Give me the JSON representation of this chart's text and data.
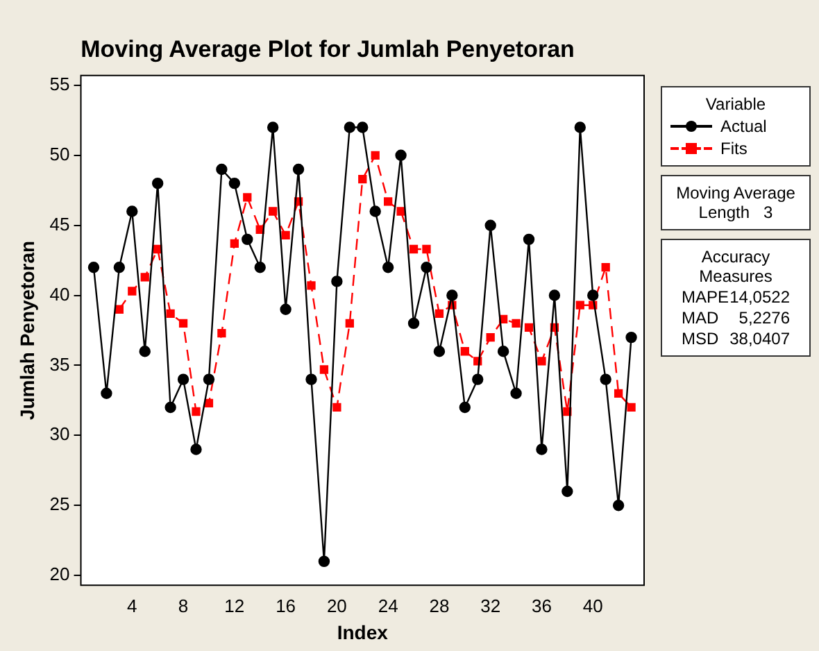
{
  "chart_data": {
    "type": "line",
    "title": "Moving Average Plot for Jumlah Penyetoran",
    "xlabel": "Index",
    "ylabel": "Jumlah Penyetoran",
    "legend_title": "Variable",
    "x": [
      1,
      2,
      3,
      4,
      5,
      6,
      7,
      8,
      9,
      10,
      11,
      12,
      13,
      14,
      15,
      16,
      17,
      18,
      19,
      20,
      21,
      22,
      23,
      24,
      25,
      26,
      27,
      28,
      29,
      30,
      31,
      32,
      33,
      34,
      35,
      36,
      37,
      38,
      39,
      40,
      41,
      42,
      43
    ],
    "series": [
      {
        "name": "Actual",
        "color": "#000000",
        "marker": "circle",
        "line_style": "solid",
        "values": [
          42,
          33,
          42,
          46,
          36,
          48,
          32,
          34,
          29,
          34,
          49,
          48,
          44,
          42,
          52,
          39,
          49,
          34,
          21,
          41,
          52,
          52,
          46,
          42,
          50,
          38,
          42,
          36,
          40,
          32,
          34,
          45,
          36,
          33,
          44,
          29,
          40,
          26,
          52,
          40,
          34,
          25,
          37
        ]
      },
      {
        "name": "Fits",
        "color": "#ff0000",
        "marker": "square",
        "line_style": "dashed",
        "values": [
          null,
          null,
          39,
          40.3,
          41.3,
          43.3,
          38.7,
          38,
          31.7,
          32.3,
          37.3,
          43.7,
          47,
          44.7,
          46,
          44.3,
          46.7,
          40.7,
          34.7,
          32,
          38,
          48.3,
          50,
          46.7,
          46,
          43.3,
          43.3,
          38.7,
          39.3,
          36,
          35.3,
          37,
          38.3,
          38,
          37.7,
          35.3,
          37.7,
          31.7,
          39.3,
          39.3,
          42,
          33,
          32
        ]
      }
    ],
    "xlim": [
      0,
      44
    ],
    "xticks": [
      4,
      8,
      12,
      16,
      20,
      24,
      28,
      32,
      36,
      40
    ],
    "ylim": [
      19.3,
      55.7
    ],
    "yticks": [
      20,
      25,
      30,
      35,
      40,
      45,
      50,
      55
    ],
    "grid": false,
    "legend": "right",
    "annotations": [
      "Moving Average",
      "Length   3",
      "Accuracy Measures",
      "MAPE",
      "14,0522",
      "MAD",
      "5,2276",
      "MSD",
      "38,0407"
    ]
  }
}
